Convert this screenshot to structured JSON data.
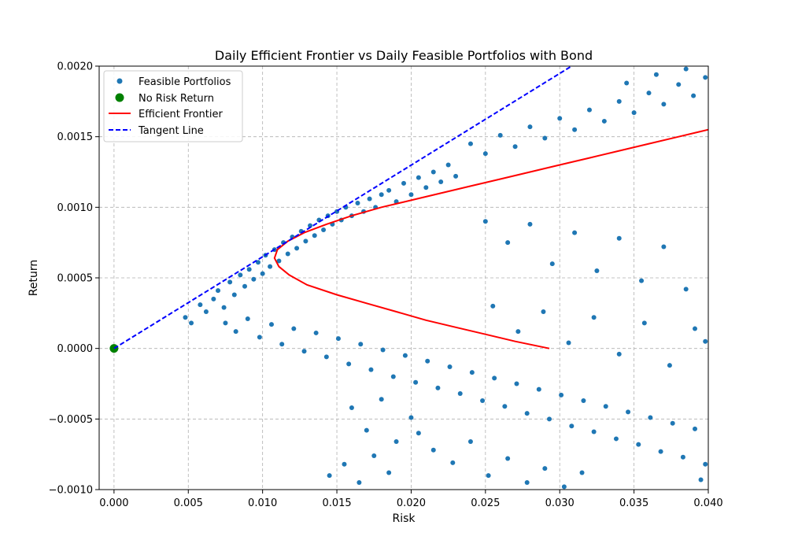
{
  "chart_data": {
    "type": "scatter",
    "title": "Daily Efficient Frontier vs Daily Feasible Portfolios with Bond",
    "xlabel": "Risk",
    "ylabel": "Return",
    "xlim": [
      -0.001,
      0.04
    ],
    "ylim": [
      -0.001,
      0.002
    ],
    "grid": true,
    "legend_position": "top-left",
    "xticks": [
      {
        "value": 0.0,
        "label": "0.000"
      },
      {
        "value": 0.005,
        "label": "0.005"
      },
      {
        "value": 0.01,
        "label": "0.010"
      },
      {
        "value": 0.015,
        "label": "0.015"
      },
      {
        "value": 0.02,
        "label": "0.020"
      },
      {
        "value": 0.025,
        "label": "0.025"
      },
      {
        "value": 0.03,
        "label": "0.030"
      },
      {
        "value": 0.035,
        "label": "0.035"
      },
      {
        "value": 0.04,
        "label": "0.040"
      }
    ],
    "yticks": [
      {
        "value": -0.001,
        "label": "−0.0010"
      },
      {
        "value": -0.0005,
        "label": "−0.0005"
      },
      {
        "value": 0.0,
        "label": "0.0000"
      },
      {
        "value": 0.0005,
        "label": "0.0005"
      },
      {
        "value": 0.001,
        "label": "0.0010"
      },
      {
        "value": 0.0015,
        "label": "0.0015"
      },
      {
        "value": 0.002,
        "label": "0.0020"
      }
    ],
    "series": [
      {
        "name": "Feasible Portfolios",
        "kind": "scatter",
        "color": "#1f77b4",
        "points": [
          [
            0.0048,
            0.00022
          ],
          [
            0.0052,
            0.00018
          ],
          [
            0.0058,
            0.00031
          ],
          [
            0.0062,
            0.00026
          ],
          [
            0.0067,
            0.00035
          ],
          [
            0.007,
            0.00041
          ],
          [
            0.0074,
            0.00029
          ],
          [
            0.0078,
            0.00047
          ],
          [
            0.0081,
            0.00038
          ],
          [
            0.0085,
            0.00052
          ],
          [
            0.0088,
            0.00044
          ],
          [
            0.0091,
            0.00056
          ],
          [
            0.0094,
            0.00049
          ],
          [
            0.0097,
            0.00061
          ],
          [
            0.01,
            0.00053
          ],
          [
            0.0102,
            0.00066
          ],
          [
            0.0105,
            0.00058
          ],
          [
            0.0108,
            0.0007
          ],
          [
            0.0111,
            0.00062
          ],
          [
            0.0114,
            0.00075
          ],
          [
            0.0117,
            0.00067
          ],
          [
            0.012,
            0.00079
          ],
          [
            0.0123,
            0.00071
          ],
          [
            0.0126,
            0.00083
          ],
          [
            0.0129,
            0.00076
          ],
          [
            0.0132,
            0.00087
          ],
          [
            0.0135,
            0.0008
          ],
          [
            0.0138,
            0.00091
          ],
          [
            0.0141,
            0.00084
          ],
          [
            0.0144,
            0.00094
          ],
          [
            0.0147,
            0.00088
          ],
          [
            0.015,
            0.00097
          ],
          [
            0.0153,
            0.00091
          ],
          [
            0.0156,
            0.001
          ],
          [
            0.016,
            0.00094
          ],
          [
            0.0164,
            0.00103
          ],
          [
            0.0168,
            0.00097
          ],
          [
            0.0172,
            0.00106
          ],
          [
            0.0176,
            0.001
          ],
          [
            0.018,
            0.00109
          ],
          [
            0.0185,
            0.00112
          ],
          [
            0.019,
            0.00104
          ],
          [
            0.0195,
            0.00117
          ],
          [
            0.02,
            0.00109
          ],
          [
            0.0205,
            0.00121
          ],
          [
            0.021,
            0.00114
          ],
          [
            0.0215,
            0.00125
          ],
          [
            0.022,
            0.00118
          ],
          [
            0.0225,
            0.0013
          ],
          [
            0.023,
            0.00122
          ],
          [
            0.0075,
            0.00018
          ],
          [
            0.0082,
            0.00012
          ],
          [
            0.009,
            0.00021
          ],
          [
            0.0098,
            8e-05
          ],
          [
            0.0106,
            0.00017
          ],
          [
            0.0113,
            3e-05
          ],
          [
            0.0121,
            0.00014
          ],
          [
            0.0128,
            -2e-05
          ],
          [
            0.0136,
            0.00011
          ],
          [
            0.0143,
            -6e-05
          ],
          [
            0.0151,
            7e-05
          ],
          [
            0.0158,
            -0.00011
          ],
          [
            0.0166,
            3e-05
          ],
          [
            0.0173,
            -0.00015
          ],
          [
            0.0181,
            -1e-05
          ],
          [
            0.0188,
            -0.0002
          ],
          [
            0.0196,
            -5e-05
          ],
          [
            0.0203,
            -0.00024
          ],
          [
            0.0211,
            -9e-05
          ],
          [
            0.0218,
            -0.00028
          ],
          [
            0.0226,
            -0.00013
          ],
          [
            0.0233,
            -0.00032
          ],
          [
            0.0241,
            -0.00017
          ],
          [
            0.0248,
            -0.00037
          ],
          [
            0.0256,
            -0.00021
          ],
          [
            0.0263,
            -0.00041
          ],
          [
            0.0271,
            -0.00025
          ],
          [
            0.0278,
            -0.00046
          ],
          [
            0.0286,
            -0.00029
          ],
          [
            0.0293,
            -0.0005
          ],
          [
            0.0301,
            -0.00033
          ],
          [
            0.0308,
            -0.00055
          ],
          [
            0.0316,
            -0.00037
          ],
          [
            0.0323,
            -0.00059
          ],
          [
            0.0331,
            -0.00041
          ],
          [
            0.0338,
            -0.00064
          ],
          [
            0.0346,
            -0.00045
          ],
          [
            0.0353,
            -0.00068
          ],
          [
            0.0361,
            -0.00049
          ],
          [
            0.0368,
            -0.00073
          ],
          [
            0.0376,
            -0.00053
          ],
          [
            0.0383,
            -0.00077
          ],
          [
            0.0391,
            -0.00057
          ],
          [
            0.0398,
            -0.00082
          ],
          [
            0.0395,
            -0.00093
          ],
          [
            0.024,
            0.00145
          ],
          [
            0.025,
            0.00138
          ],
          [
            0.026,
            0.00151
          ],
          [
            0.027,
            0.00143
          ],
          [
            0.028,
            0.00157
          ],
          [
            0.029,
            0.00149
          ],
          [
            0.03,
            0.00163
          ],
          [
            0.031,
            0.00155
          ],
          [
            0.032,
            0.00169
          ],
          [
            0.033,
            0.00161
          ],
          [
            0.034,
            0.00175
          ],
          [
            0.035,
            0.00167
          ],
          [
            0.036,
            0.00181
          ],
          [
            0.037,
            0.00173
          ],
          [
            0.038,
            0.00187
          ],
          [
            0.039,
            0.00179
          ],
          [
            0.0398,
            0.00192
          ],
          [
            0.0385,
            0.00198
          ],
          [
            0.0365,
            0.00194
          ],
          [
            0.0345,
            0.00188
          ],
          [
            0.025,
            0.0009
          ],
          [
            0.0265,
            0.00075
          ],
          [
            0.028,
            0.00088
          ],
          [
            0.0295,
            0.0006
          ],
          [
            0.031,
            0.00082
          ],
          [
            0.0325,
            0.00055
          ],
          [
            0.034,
            0.00078
          ],
          [
            0.0355,
            0.00048
          ],
          [
            0.037,
            0.00072
          ],
          [
            0.0385,
            0.00042
          ],
          [
            0.0255,
            0.0003
          ],
          [
            0.0272,
            0.00012
          ],
          [
            0.0289,
            0.00026
          ],
          [
            0.0306,
            4e-05
          ],
          [
            0.0323,
            0.00022
          ],
          [
            0.034,
            -4e-05
          ],
          [
            0.0357,
            0.00018
          ],
          [
            0.0374,
            -0.00012
          ],
          [
            0.0391,
            0.00014
          ],
          [
            0.0398,
            5e-05
          ],
          [
            0.0205,
            -0.0006
          ],
          [
            0.0215,
            -0.00072
          ],
          [
            0.0228,
            -0.00081
          ],
          [
            0.024,
            -0.00066
          ],
          [
            0.0252,
            -0.0009
          ],
          [
            0.0265,
            -0.00078
          ],
          [
            0.0278,
            -0.00095
          ],
          [
            0.029,
            -0.00085
          ],
          [
            0.0303,
            -0.00098
          ],
          [
            0.0315,
            -0.00088
          ],
          [
            0.016,
            -0.00042
          ],
          [
            0.017,
            -0.00058
          ],
          [
            0.018,
            -0.00036
          ],
          [
            0.019,
            -0.00066
          ],
          [
            0.02,
            -0.00049
          ],
          [
            0.0145,
            -0.0009
          ],
          [
            0.0155,
            -0.00082
          ],
          [
            0.0165,
            -0.00095
          ],
          [
            0.0175,
            -0.00076
          ],
          [
            0.0185,
            -0.00088
          ]
        ]
      },
      {
        "name": "No Risk Return",
        "kind": "scatter",
        "color": "#008000",
        "points": [
          [
            0.0,
            0.0
          ]
        ]
      },
      {
        "name": "Efficient Frontier",
        "kind": "line",
        "color": "#ff0000",
        "points": [
          [
            0.0293,
            0.0
          ],
          [
            0.027,
            5e-05
          ],
          [
            0.025,
            0.0001
          ],
          [
            0.023,
            0.00015
          ],
          [
            0.021,
            0.0002
          ],
          [
            0.019,
            0.00026
          ],
          [
            0.017,
            0.00032
          ],
          [
            0.015,
            0.00038
          ],
          [
            0.013,
            0.00045
          ],
          [
            0.0118,
            0.00052
          ],
          [
            0.0111,
            0.00058
          ],
          [
            0.0108,
            0.00064
          ],
          [
            0.011,
            0.0007
          ],
          [
            0.0117,
            0.00076
          ],
          [
            0.0128,
            0.00082
          ],
          [
            0.0143,
            0.00088
          ],
          [
            0.016,
            0.00094
          ],
          [
            0.018,
            0.001
          ],
          [
            0.02,
            0.00105
          ],
          [
            0.022,
            0.0011
          ],
          [
            0.024,
            0.00115
          ],
          [
            0.026,
            0.0012
          ],
          [
            0.028,
            0.00125
          ],
          [
            0.03,
            0.0013
          ],
          [
            0.032,
            0.00135
          ],
          [
            0.034,
            0.0014
          ],
          [
            0.036,
            0.00145
          ],
          [
            0.038,
            0.0015
          ],
          [
            0.04,
            0.00155
          ]
        ]
      },
      {
        "name": "Tangent Line",
        "kind": "dashed-line",
        "color": "#0000ff",
        "points": [
          [
            0.0,
            0.0
          ],
          [
            0.0308,
            0.002
          ]
        ]
      }
    ]
  }
}
